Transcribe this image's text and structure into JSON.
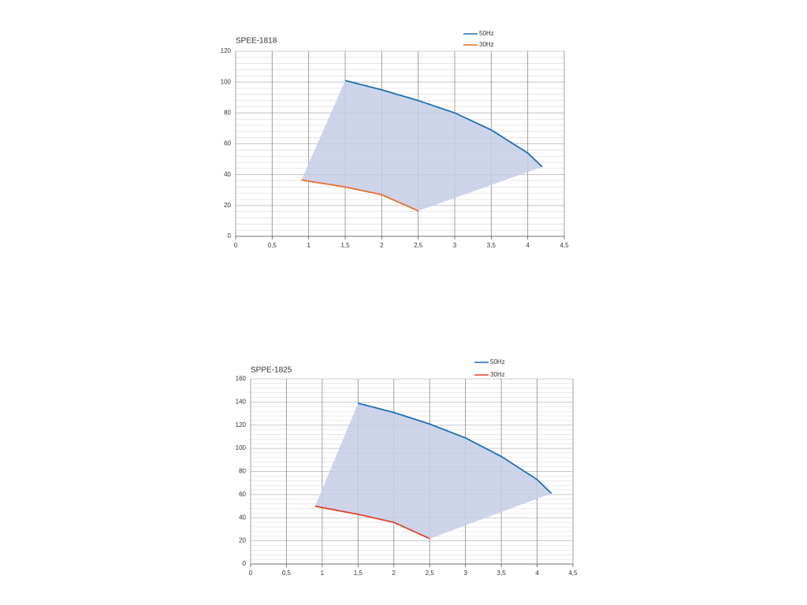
{
  "chart_data": [
    {
      "type": "line",
      "title": "SPEE-1818",
      "series": [
        {
          "name": "50Hz",
          "color": "#1f6fb5",
          "x": [
            1.5,
            2,
            2.5,
            3,
            3.5,
            4,
            4.2
          ],
          "values": [
            101,
            95,
            88,
            80,
            69,
            54,
            45
          ]
        },
        {
          "name": "30Hz",
          "color": "#e8702a",
          "x": [
            0.9,
            1.5,
            2,
            2.5
          ],
          "values": [
            36.5,
            32,
            27,
            16.5
          ]
        }
      ],
      "fill_color": "#c5cde6",
      "xlim": [
        0,
        4.5
      ],
      "xticks": [
        0,
        {
          "value": 0.5,
          "label": "0,5"
        },
        1,
        {
          "value": 1.5,
          "label": "1,5"
        },
        2,
        {
          "value": 2.5,
          "label": "2,5"
        },
        3,
        {
          "value": 3.5,
          "label": "3,5"
        },
        4,
        {
          "value": 4.5,
          "label": "4,5"
        }
      ],
      "ylim": [
        0,
        120
      ],
      "yticks": [
        0,
        20,
        40,
        60,
        80,
        100,
        120
      ],
      "grid": true,
      "minor_grid_step": 4
    },
    {
      "type": "line",
      "title": "SPPE-1825",
      "series": [
        {
          "name": "50Hz",
          "color": "#1f6fb5",
          "x": [
            1.5,
            2,
            2.5,
            3,
            3.5,
            4,
            4.2
          ],
          "values": [
            139,
            131,
            121,
            109,
            93,
            73,
            61
          ]
        },
        {
          "name": "30Hz",
          "color": "#e0452a",
          "x": [
            0.9,
            1.5,
            2,
            2.5
          ],
          "values": [
            50,
            43,
            36,
            22
          ]
        }
      ],
      "fill_color": "#c5cde6",
      "xlim": [
        0,
        4.5
      ],
      "xticks": [
        0,
        {
          "value": 0.5,
          "label": "0,5"
        },
        1,
        {
          "value": 1.5,
          "label": "1,5"
        },
        2,
        {
          "value": 2.5,
          "label": "2,5"
        },
        3,
        {
          "value": 3.5,
          "label": "3,5"
        },
        4,
        {
          "value": 4.5,
          "label": "4,5"
        }
      ],
      "ylim": [
        0,
        160
      ],
      "yticks": [
        0,
        20,
        40,
        60,
        80,
        100,
        120,
        140,
        160
      ],
      "grid": true,
      "minor_grid_step": 4
    }
  ]
}
